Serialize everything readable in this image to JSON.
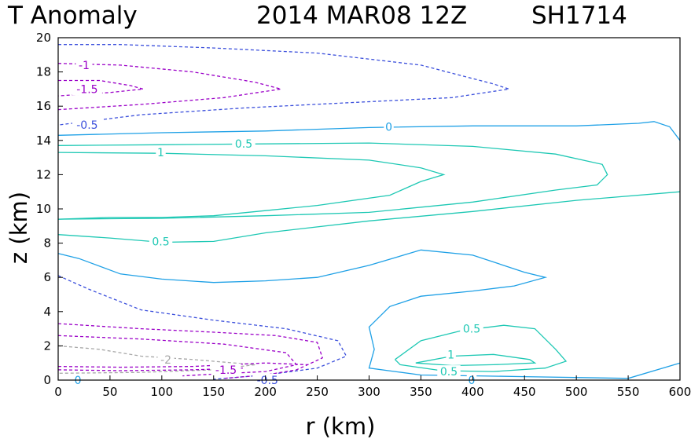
{
  "title": {
    "left": "T Anomaly",
    "date": "2014 MAR08 12Z",
    "storm": "SH1714"
  },
  "chart_data": {
    "type": "contour",
    "xlabel": "r (km)",
    "ylabel": "z (km)",
    "xlim": [
      0,
      600
    ],
    "ylim": [
      0,
      20
    ],
    "xticks": [
      0,
      50,
      100,
      150,
      200,
      250,
      300,
      350,
      400,
      450,
      500,
      550,
      600
    ],
    "yticks": [
      0,
      2,
      4,
      6,
      8,
      10,
      12,
      14,
      16,
      18,
      20
    ],
    "grid": false,
    "colors": {
      "-2": "#a6a6a6",
      "-1.5": "#9b00c8",
      "-1": "#9b00c8",
      "-0.5": "#3c50dc",
      "0": "#1ea0e6",
      "0.5": "#1ec8b4",
      "1": "#1ec8b4"
    },
    "contours": [
      {
        "level": -0.5,
        "style": "dashed",
        "points": [
          [
            0,
            19.6
          ],
          [
            60,
            19.6
          ],
          [
            150,
            19.4
          ],
          [
            250,
            19.1
          ],
          [
            350,
            18.4
          ],
          [
            420,
            17.3
          ],
          [
            435,
            17.0
          ],
          [
            380,
            16.5
          ],
          [
            280,
            16.2
          ],
          [
            180,
            15.9
          ],
          [
            80,
            15.5
          ],
          [
            0,
            14.9
          ]
        ]
      },
      {
        "level": -1,
        "style": "dashed",
        "points": [
          [
            0,
            18.5
          ],
          [
            60,
            18.4
          ],
          [
            130,
            18.0
          ],
          [
            190,
            17.4
          ],
          [
            215,
            17.0
          ],
          [
            160,
            16.5
          ],
          [
            80,
            16.1
          ],
          [
            0,
            15.8
          ]
        ]
      },
      {
        "level": -1.5,
        "style": "dashed",
        "points": [
          [
            0,
            17.5
          ],
          [
            40,
            17.5
          ],
          [
            70,
            17.2
          ],
          [
            82,
            17.0
          ],
          [
            50,
            16.8
          ],
          [
            0,
            16.6
          ]
        ]
      },
      {
        "level": 0,
        "style": "solid",
        "points": [
          [
            0,
            14.3
          ],
          [
            100,
            14.45
          ],
          [
            200,
            14.55
          ],
          [
            300,
            14.75
          ],
          [
            400,
            14.85
          ],
          [
            500,
            14.85
          ],
          [
            560,
            15.0
          ],
          [
            575,
            15.1
          ],
          [
            590,
            14.8
          ],
          [
            600,
            14.0
          ]
        ]
      },
      {
        "level": 0.5,
        "style": "solid",
        "points": [
          [
            0,
            13.7
          ],
          [
            100,
            13.75
          ],
          [
            200,
            13.8
          ],
          [
            300,
            13.85
          ],
          [
            400,
            13.65
          ],
          [
            480,
            13.2
          ],
          [
            525,
            12.6
          ],
          [
            530,
            12.0
          ],
          [
            520,
            11.4
          ],
          [
            480,
            11.1
          ],
          [
            400,
            10.4
          ],
          [
            300,
            9.8
          ],
          [
            200,
            9.6
          ],
          [
            100,
            9.45
          ],
          [
            0,
            9.4
          ]
        ]
      },
      {
        "level": 1,
        "style": "solid",
        "points": [
          [
            0,
            13.3
          ],
          [
            100,
            13.25
          ],
          [
            200,
            13.1
          ],
          [
            300,
            12.85
          ],
          [
            350,
            12.4
          ],
          [
            372,
            12.0
          ],
          [
            350,
            11.6
          ],
          [
            320,
            10.8
          ],
          [
            250,
            10.2
          ],
          [
            200,
            9.9
          ],
          [
            150,
            9.6
          ],
          [
            100,
            9.5
          ],
          [
            50,
            9.5
          ],
          [
            0,
            9.4
          ]
        ]
      },
      {
        "level": 0.5,
        "style": "solid",
        "points": [
          [
            0,
            8.5
          ],
          [
            50,
            8.3
          ],
          [
            100,
            8.05
          ],
          [
            150,
            8.1
          ],
          [
            200,
            8.6
          ],
          [
            300,
            9.3
          ],
          [
            400,
            9.85
          ],
          [
            500,
            10.5
          ],
          [
            600,
            11.0
          ]
        ]
      },
      {
        "level": 0,
        "style": "solid",
        "points": [
          [
            0,
            7.4
          ],
          [
            20,
            7.1
          ],
          [
            60,
            6.2
          ],
          [
            100,
            5.9
          ],
          [
            150,
            5.7
          ],
          [
            200,
            5.8
          ],
          [
            250,
            6.0
          ],
          [
            300,
            6.7
          ],
          [
            350,
            7.6
          ],
          [
            400,
            7.3
          ],
          [
            450,
            6.3
          ],
          [
            470,
            6.0
          ],
          [
            440,
            5.5
          ],
          [
            400,
            5.2
          ],
          [
            350,
            4.9
          ],
          [
            320,
            4.3
          ],
          [
            300,
            3.1
          ],
          [
            305,
            1.8
          ],
          [
            300,
            0.7
          ],
          [
            350,
            0.3
          ],
          [
            450,
            0.2
          ],
          [
            550,
            0.1
          ],
          [
            600,
            1.0
          ]
        ]
      },
      {
        "level": -0.5,
        "style": "dashed",
        "points": [
          [
            0,
            6.1
          ],
          [
            30,
            5.3
          ],
          [
            80,
            4.1
          ],
          [
            150,
            3.5
          ],
          [
            220,
            3.0
          ],
          [
            270,
            2.3
          ],
          [
            278,
            1.4
          ],
          [
            250,
            0.7
          ],
          [
            200,
            0.3
          ],
          [
            150,
            0.05
          ]
        ]
      },
      {
        "level": -1,
        "style": "dashed",
        "points": [
          [
            0,
            3.3
          ],
          [
            80,
            3.0
          ],
          [
            150,
            2.8
          ],
          [
            210,
            2.6
          ],
          [
            250,
            2.2
          ],
          [
            255,
            1.3
          ],
          [
            230,
            0.6
          ],
          [
            200,
            0.3
          ],
          [
            160,
            0.1
          ]
        ]
      },
      {
        "level": -1.5,
        "style": "dashed",
        "points": [
          [
            0,
            2.6
          ],
          [
            80,
            2.4
          ],
          [
            160,
            2.1
          ],
          [
            220,
            1.6
          ],
          [
            230,
            0.9
          ],
          [
            200,
            0.5
          ],
          [
            150,
            0.35
          ],
          [
            120,
            0.25
          ]
        ]
      },
      {
        "level": -2,
        "style": "dashed",
        "points": [
          [
            0,
            2.0
          ],
          [
            40,
            1.8
          ],
          [
            80,
            1.4
          ],
          [
            130,
            1.2
          ],
          [
            190,
            0.9
          ],
          [
            150,
            0.6
          ],
          [
            80,
            0.45
          ],
          [
            0,
            0.4
          ]
        ]
      },
      {
        "level": -1,
        "style": "dashed",
        "points": [
          [
            0,
            0.8
          ],
          [
            60,
            0.75
          ],
          [
            130,
            0.8
          ],
          [
            200,
            1.0
          ],
          [
            240,
            0.9
          ]
        ]
      },
      {
        "level": -1.5,
        "style": "dashed",
        "points": [
          [
            0,
            0.6
          ],
          [
            60,
            0.55
          ],
          [
            130,
            0.6
          ],
          [
            180,
            0.7
          ]
        ]
      },
      {
        "level": 0.5,
        "style": "solid",
        "points": [
          [
            325,
            1.2
          ],
          [
            350,
            2.3
          ],
          [
            390,
            2.9
          ],
          [
            430,
            3.2
          ],
          [
            460,
            3.0
          ],
          [
            480,
            1.8
          ],
          [
            490,
            1.1
          ],
          [
            470,
            0.7
          ],
          [
            420,
            0.5
          ],
          [
            370,
            0.55
          ],
          [
            330,
            0.9
          ],
          [
            325,
            1.2
          ]
        ]
      },
      {
        "level": 1,
        "style": "solid",
        "points": [
          [
            345,
            1.0
          ],
          [
            380,
            1.4
          ],
          [
            420,
            1.5
          ],
          [
            455,
            1.2
          ],
          [
            460,
            1.0
          ],
          [
            420,
            0.9
          ],
          [
            380,
            0.85
          ],
          [
            345,
            1.0
          ]
        ]
      }
    ],
    "contour_labels": [
      {
        "text": "-1",
        "level": -1,
        "x": 25,
        "y": 18.4
      },
      {
        "text": "-1.5",
        "level": -1.5,
        "x": 28,
        "y": 17.0
      },
      {
        "text": "-0.5",
        "level": -0.5,
        "x": 28,
        "y": 14.9
      },
      {
        "text": "0",
        "level": 0,
        "x": 319,
        "y": 14.8
      },
      {
        "text": "0.5",
        "level": 0.5,
        "x": 179,
        "y": 13.8
      },
      {
        "text": "1",
        "level": 1,
        "x": 99,
        "y": 13.3
      },
      {
        "text": "0.5",
        "level": 0.5,
        "x": 99,
        "y": 8.1
      },
      {
        "text": "0.5",
        "level": 0.5,
        "x": 399,
        "y": 3.0
      },
      {
        "text": "1",
        "level": 1,
        "x": 379,
        "y": 1.5
      },
      {
        "text": "0.5",
        "level": 0.5,
        "x": 377,
        "y": 0.5
      },
      {
        "text": "0",
        "level": 0,
        "x": 399,
        "y": 0.0
      },
      {
        "text": "-2",
        "level": -2,
        "x": 104,
        "y": 1.2
      },
      {
        "text": "-1.5",
        "level": -1.5,
        "x": 162,
        "y": 0.6
      },
      {
        "text": "-0.5",
        "level": -0.5,
        "x": 202,
        "y": 0.0
      },
      {
        "text": "0",
        "level": 0,
        "x": 19,
        "y": 0.0
      }
    ]
  }
}
